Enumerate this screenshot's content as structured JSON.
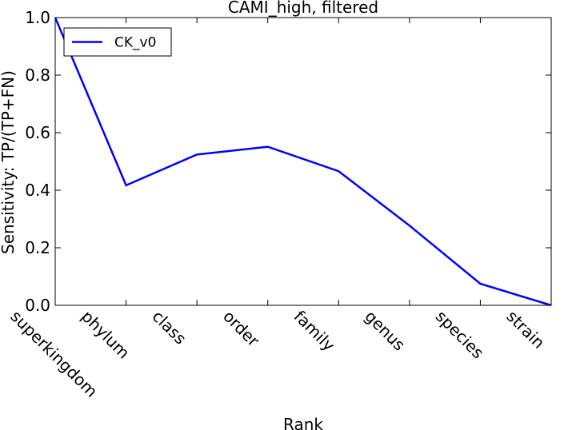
{
  "chart_data": {
    "type": "line",
    "title": "CAMI_high, filtered",
    "xlabel": "Rank",
    "ylabel": "Sensitivity: TP/(TP+FN)",
    "categories": [
      "superkingdom",
      "phylum",
      "class",
      "order",
      "family",
      "genus",
      "species",
      "strain"
    ],
    "series": [
      {
        "name": "CK_v0",
        "color": "#0000ff",
        "values": [
          1.0,
          0.417,
          0.524,
          0.551,
          0.466,
          0.277,
          0.075,
          0.0
        ]
      }
    ],
    "ylim": [
      0.0,
      1.0
    ],
    "yticks": [
      "0.0",
      "0.2",
      "0.4",
      "0.6",
      "0.8",
      "1.0"
    ],
    "grid": false,
    "legend": {
      "position": "top-left"
    }
  }
}
